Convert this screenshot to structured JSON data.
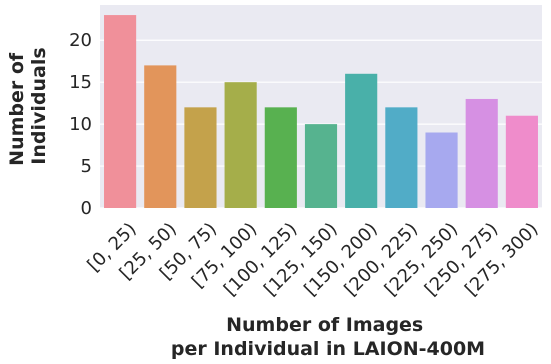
{
  "chart_data": {
    "type": "bar",
    "xlabel": [
      "Number of Images",
      "per Individual in LAION-400M"
    ],
    "ylabel": [
      "Number of",
      "Individuals"
    ],
    "categories": [
      "[0, 25)",
      "[25, 50)",
      "[50, 75)",
      "[75, 100)",
      "[100, 125)",
      "[125, 150)",
      "[150, 200)",
      "[200, 225)",
      "[225, 250)",
      "[250, 275)",
      "[275, 300)"
    ],
    "values": [
      23,
      17,
      12,
      15,
      12,
      10,
      16,
      12,
      9,
      13,
      11
    ],
    "colors": [
      "#f0909a",
      "#e2955b",
      "#c4a24b",
      "#a5ae4a",
      "#58b150",
      "#56b38f",
      "#49b0a9",
      "#51acc7",
      "#a7a9ef",
      "#d690e3",
      "#ef8ccb"
    ],
    "yticks": [
      0,
      5,
      10,
      15,
      20
    ],
    "ylim": [
      0,
      24.2
    ],
    "grid": true,
    "background": "#eaeaf2"
  }
}
